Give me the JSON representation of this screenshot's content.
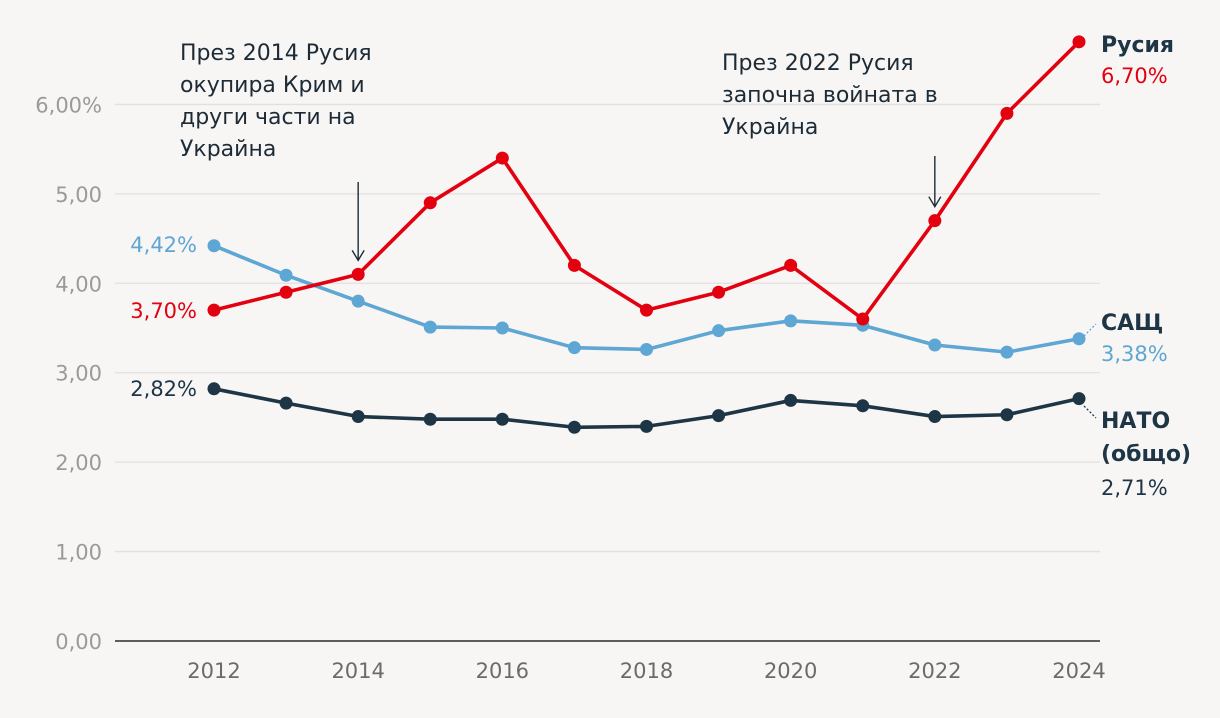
{
  "chart_data": {
    "type": "line",
    "x": [
      2012,
      2013,
      2014,
      2015,
      2016,
      2017,
      2018,
      2019,
      2020,
      2021,
      2022,
      2023,
      2024
    ],
    "x_ticks": [
      "2012",
      "2014",
      "2016",
      "2018",
      "2020",
      "2022",
      "2024"
    ],
    "y_ticks": [
      "0,00",
      "1,00",
      "2,00",
      "3,00",
      "4,00",
      "5,00",
      "6,00%"
    ],
    "ylim": [
      0,
      7
    ],
    "grid": true,
    "series": [
      {
        "name": "Русия",
        "color": "#e3000f",
        "values": [
          3.7,
          3.9,
          4.1,
          4.9,
          5.4,
          4.2,
          3.7,
          3.9,
          4.2,
          3.6,
          4.7,
          5.9,
          6.7
        ],
        "start_label": "3,70%",
        "end_label": "6,70%"
      },
      {
        "name": "САЩ",
        "color": "#5ea6d3",
        "values": [
          4.42,
          4.09,
          3.8,
          3.51,
          3.5,
          3.28,
          3.26,
          3.47,
          3.58,
          3.53,
          3.31,
          3.23,
          3.38
        ],
        "start_label": "4,42%",
        "end_label": "3,38%"
      },
      {
        "name": "НАТО (общо)",
        "name_lines": [
          "НАТО",
          "(общо)"
        ],
        "color": "#1d3545",
        "values": [
          2.82,
          2.66,
          2.51,
          2.48,
          2.48,
          2.39,
          2.4,
          2.52,
          2.69,
          2.63,
          2.51,
          2.53,
          2.71
        ],
        "start_label": "2,82%",
        "end_label": "2,71%"
      }
    ],
    "annotations": [
      {
        "x": 2014,
        "lines": [
          "През 2014 Русия",
          "окупира Крим и",
          "други части на",
          "Украйна"
        ]
      },
      {
        "x": 2022,
        "lines": [
          "През 2022 Русия",
          "започна войната в",
          "Украйна"
        ]
      }
    ]
  }
}
